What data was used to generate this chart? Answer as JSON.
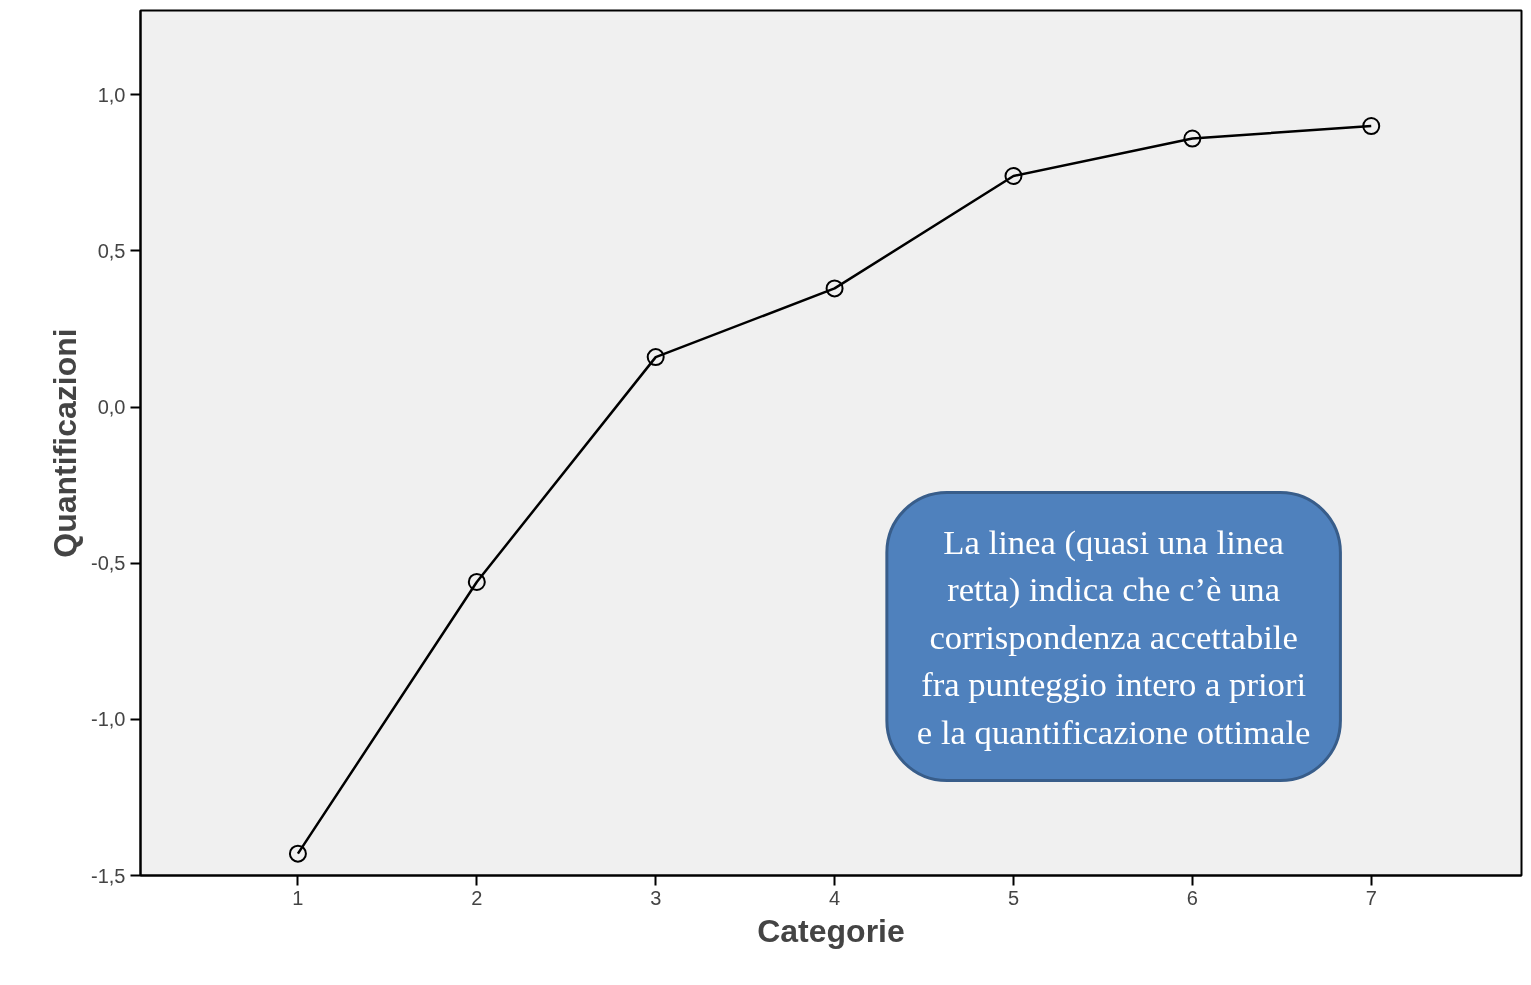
{
  "chart_data": {
    "type": "line",
    "xlabel": "Categorie",
    "ylabel": "Quantificazioni",
    "x": [
      1,
      2,
      3,
      4,
      5,
      6,
      7
    ],
    "series": [
      {
        "color": "#000000",
        "values": [
          -1.43,
          -0.56,
          0.16,
          0.38,
          0.74,
          0.86,
          0.9
        ]
      }
    ],
    "xlim": [
      0.12,
      7.84
    ],
    "xticks": [
      1,
      2,
      3,
      4,
      5,
      6,
      7
    ],
    "ylim": [
      -1.5,
      1.27
    ],
    "yticks": [
      {
        "value": -1.5,
        "label": "-1,5"
      },
      {
        "value": -1.0,
        "label": "-1,0"
      },
      {
        "value": -0.5,
        "label": "-0,5"
      },
      {
        "value": 0,
        "label": "0,0"
      },
      {
        "value": 0.5,
        "label": "0,5"
      },
      {
        "value": 1.0,
        "label": "1,0"
      }
    ],
    "marker": "circle",
    "line_style": "solid",
    "grid": false,
    "annotations": [
      "La linea (quasi una linea\nretta) indica che c’è una\ncorrispondenza accettabile\nfra punteggio intero a priori\ne la quantificazione ottimale"
    ]
  }
}
